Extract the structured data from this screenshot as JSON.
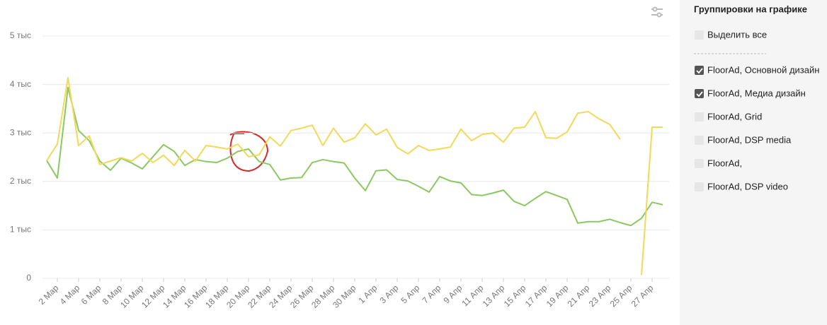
{
  "chart_data": {
    "type": "line",
    "categories": [
      null,
      "2 Мар",
      null,
      "4 Мар",
      null,
      "6 Мар",
      null,
      "8 Мар",
      null,
      "10 Мар",
      null,
      "12 Мар",
      null,
      "14 Мар",
      null,
      "16 Мар",
      null,
      "18 Мар",
      null,
      "20 Мар",
      null,
      "22 Мар",
      null,
      "24 Мар",
      null,
      "26 Мар",
      null,
      "28 Мар",
      null,
      "30 Мар",
      null,
      "1 Апр",
      null,
      "3 Апр",
      null,
      "5 Апр",
      null,
      "7 Апр",
      null,
      "9 Апр",
      null,
      "11 Апр",
      null,
      "13 Апр",
      null,
      "15 Апр",
      null,
      "17 Апр",
      null,
      "19 Апр",
      null,
      "21 Апр",
      null,
      "23 Апр",
      null,
      "25 Апр",
      null,
      "27 Апр",
      null
    ],
    "series": [
      {
        "name": "FloorAd, Основной дизайн",
        "color": "#8cc862",
        "values": [
          2430,
          2070,
          3940,
          3050,
          2840,
          2420,
          2230,
          2480,
          2380,
          2260,
          2510,
          2760,
          2620,
          2330,
          2450,
          2410,
          2390,
          2480,
          2620,
          2670,
          2410,
          2350,
          2030,
          2070,
          2080,
          2390,
          2450,
          2410,
          2380,
          2070,
          1810,
          2220,
          2240,
          2040,
          2010,
          1900,
          1780,
          2100,
          2010,
          1970,
          1730,
          1710,
          1760,
          1820,
          1590,
          1500,
          1650,
          1790,
          1710,
          1630,
          1140,
          1170,
          1170,
          1220,
          1150,
          1090,
          1240,
          1570,
          1520
        ]
      },
      {
        "name": "FloorAd, Медиа дизайн",
        "color": "#f2d95a",
        "values": [
          2430,
          2770,
          4140,
          2740,
          2940,
          2350,
          2420,
          2490,
          2420,
          2580,
          2390,
          2540,
          2330,
          2640,
          2420,
          2740,
          2710,
          2670,
          2770,
          2510,
          2550,
          2920,
          2730,
          3050,
          3100,
          3160,
          2740,
          3100,
          2810,
          2900,
          3190,
          2960,
          3080,
          2700,
          2570,
          2740,
          2640,
          2670,
          2710,
          3080,
          2840,
          2970,
          3000,
          2810,
          3100,
          3120,
          3440,
          2900,
          2890,
          3020,
          3410,
          3440,
          3290,
          3180,
          2870,
          null,
          70,
          3120,
          3120
        ]
      }
    ],
    "ylim": [
      0,
      5000
    ],
    "yticks": [
      0,
      {
        "value": 1000,
        "label": "1 тыс"
      },
      {
        "value": 2000,
        "label": "2 тыс"
      },
      {
        "value": 3000,
        "label": "3 тыс"
      },
      {
        "value": 4000,
        "label": "4 тыс"
      },
      {
        "value": 5000,
        "label": "5 тыс"
      }
    ],
    "grid": true
  },
  "sidebar": {
    "title": "Группировки на графике",
    "select_all": "Выделить все",
    "other_items": [
      "FloorAd, Grid",
      "FloorAd, DSP media",
      "FloorAd,",
      "FloorAd, DSP video"
    ]
  }
}
